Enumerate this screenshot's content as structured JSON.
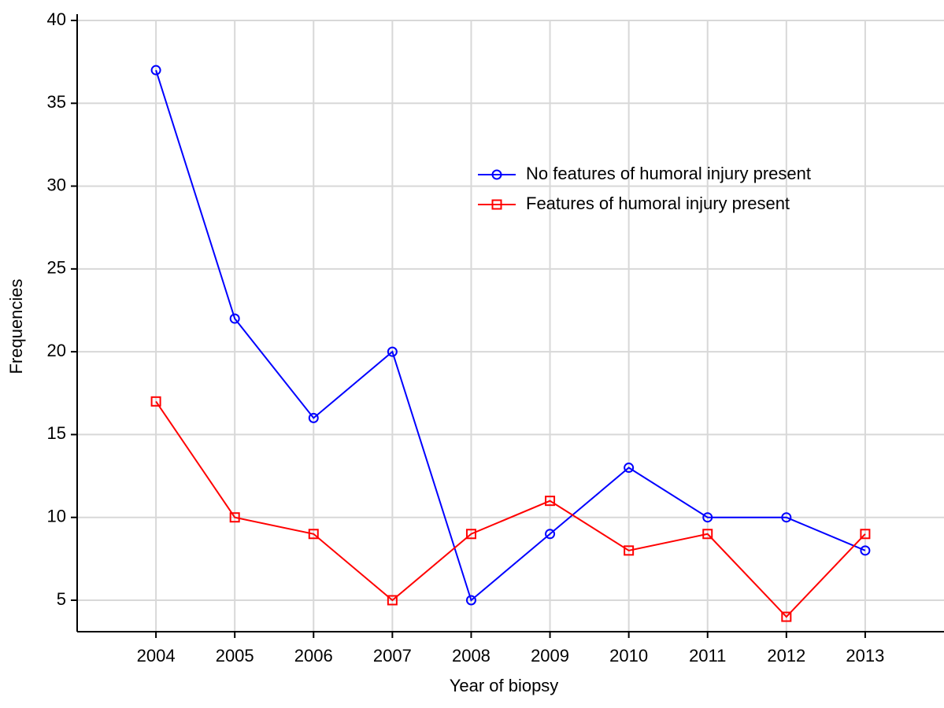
{
  "chart_data": {
    "type": "line",
    "x_label": "Year of biopsy",
    "y_label": "Frequencies",
    "x": [
      2004,
      2005,
      2006,
      2007,
      2008,
      2009,
      2010,
      2011,
      2012,
      2013
    ],
    "series": [
      {
        "name": "No features of humoral injury present",
        "color": "#0000ff",
        "marker": "circle",
        "values": [
          37,
          22,
          16,
          20,
          5,
          9,
          13,
          10,
          10,
          8
        ]
      },
      {
        "name": "Features of humoral injury present",
        "color": "#ff0000",
        "marker": "square",
        "values": [
          17,
          10,
          9,
          5,
          9,
          11,
          8,
          9,
          4,
          9
        ]
      }
    ],
    "xlim": [
      2003,
      2014
    ],
    "xticks": [
      2004,
      2005,
      2006,
      2007,
      2008,
      2009,
      2010,
      2011,
      2012,
      2013
    ],
    "ylim": [
      3.1,
      40
    ],
    "yticks": [
      5,
      10,
      15,
      20,
      25,
      30,
      35,
      40
    ],
    "grid": true,
    "legend": "upper right"
  }
}
